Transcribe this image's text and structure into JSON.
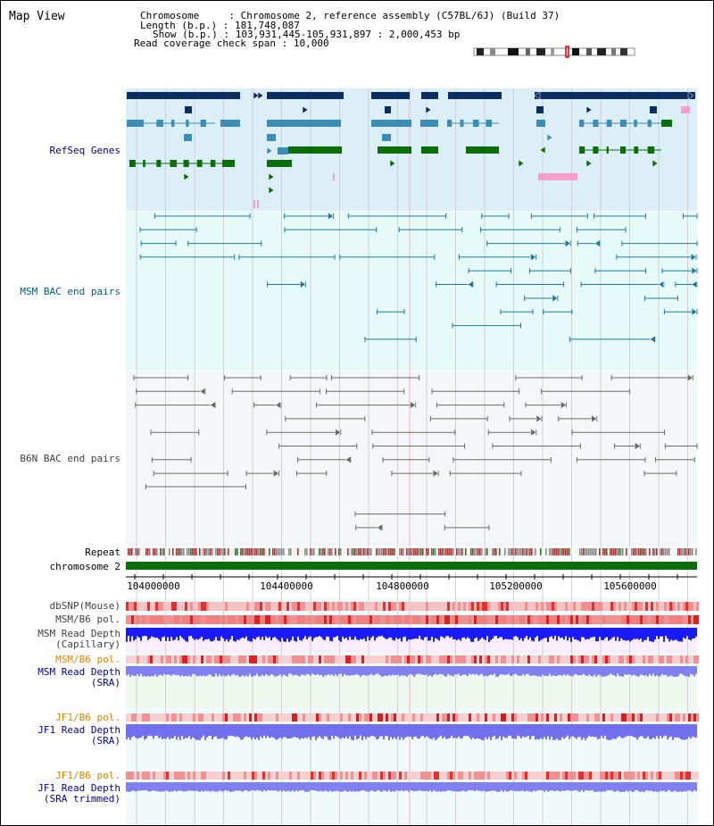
{
  "title": "Map View",
  "header": {
    "chromosome_key": "Chromosome",
    "chromosome_val": "Chromosome 2, reference assembly (C57BL/6J) (Build 37)",
    "length_key": "Length (b.p.)",
    "length_val": "181,748,087",
    "show_key": "Show (b.p.)",
    "show_val": "103,931,445-105,931,897 : 2,000,453 bp",
    "span_key": "Read coverage check span",
    "span_val": "10,000"
  },
  "tracks": {
    "refseq": "RefSeq Genes",
    "msm_bac": "MSM BAC end pairs",
    "b6n_bac": "B6N BAC end pairs",
    "repeat": "Repeat",
    "chromosome": "chromosome 2",
    "dbsnp": "dbSNP(Mouse)",
    "msm_b6_pol": "MSM/B6 pol.",
    "msm_rd_cap_1": "MSM Read Depth",
    "msm_rd_cap_2": "(Capillary)",
    "msm_b6_pol2": "MSM/B6 pol.",
    "msm_rd_sra_1": "MSM Read Depth",
    "msm_rd_sra_2": "(SRA)",
    "jf1_b6_pol": "JF1/B6 pol.",
    "jf1_rd_sra_1": "JF1 Read Depth",
    "jf1_rd_sra_2": "(SRA)",
    "jf1_b6_pol2": "JF1/B6 pol.",
    "jf1_rd_trim_1": "JF1 Read Depth",
    "jf1_rd_trim_2": "(SRA trimmed)"
  },
  "axis_ticks": [
    "104000000",
    "104400000",
    "104800000",
    "105200000",
    "105600000"
  ],
  "colors": {
    "refseq_label": "#000080",
    "msm_label": "#006080",
    "b6n_label": "#404040",
    "pol_label": "#e08000",
    "rd_label": "#0000a0",
    "refseq_bg": "#dceff9",
    "msm_bg": "#e6fafa",
    "b6n_bg": "#f4f6f9",
    "gene_navy": "#0a2d62",
    "gene_teal": "#3b8db5",
    "gene_green": "#0a6e0a",
    "gene_pink": "#f5a0c8",
    "chrom_bar": "#0a6e0a"
  }
}
